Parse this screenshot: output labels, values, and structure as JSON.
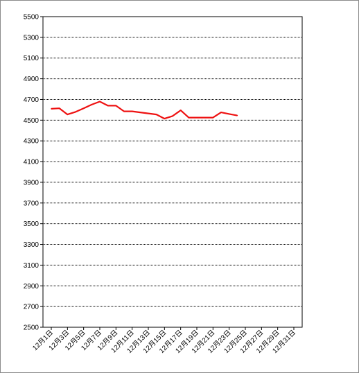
{
  "chart_data": {
    "type": "line",
    "title": "",
    "xlabel": "",
    "ylabel": "",
    "ylim": [
      2500,
      5500
    ],
    "yticks": [
      2500,
      2700,
      2900,
      3100,
      3300,
      3500,
      3700,
      3900,
      4100,
      4300,
      4500,
      4700,
      4900,
      5100,
      5300,
      5500
    ],
    "xlim": [
      1,
      31
    ],
    "xticks": [
      1,
      3,
      5,
      7,
      9,
      11,
      13,
      15,
      17,
      19,
      21,
      23,
      25,
      27,
      29,
      31
    ],
    "xtick_labels": [
      "12月1日",
      "12月3日",
      "12月5日",
      "12月7日",
      "12月9日",
      "12月11日",
      "12月13日",
      "12月15日",
      "12月17日",
      "12月19日",
      "12月21日",
      "12月23日",
      "12月25日",
      "12月27日",
      "12月29日",
      "12月31日"
    ],
    "grid": "horizontal",
    "legend": "none",
    "series": [
      {
        "color": "#ee1111",
        "x": [
          1,
          2,
          3,
          4,
          5,
          6,
          7,
          8,
          9,
          10,
          11,
          12,
          13,
          14,
          15,
          16,
          17,
          18,
          19,
          20,
          21,
          22,
          23,
          24
        ],
        "y": [
          4610,
          4615,
          4555,
          4580,
          4615,
          4650,
          4680,
          4640,
          4640,
          4585,
          4585,
          4575,
          4565,
          4555,
          4515,
          4540,
          4595,
          4525,
          4525,
          4525,
          4525,
          4575,
          4560,
          4545
        ]
      }
    ]
  }
}
